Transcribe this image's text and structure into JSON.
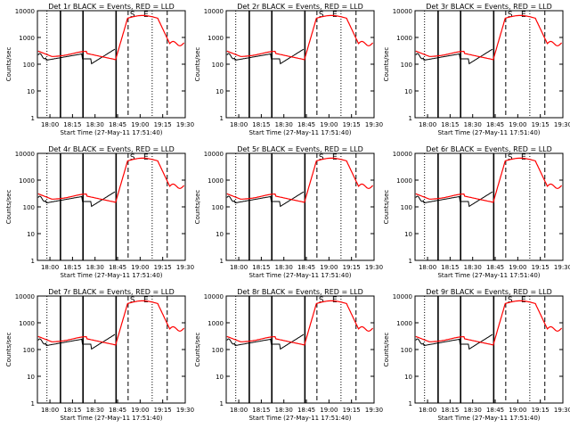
{
  "figure": {
    "xlabel": "Start Time (27-May-11 17:51:40)",
    "ylabel": "Counts/sec"
  },
  "colors": {
    "events": "#000000",
    "lld": "#ff0000",
    "axes": "#000000",
    "background": "#ffffff"
  },
  "chart_data": [
    {
      "type": "line",
      "title": "Det 1r BLACK = Events, RED = LLD",
      "xlabel": "Start Time (27-May-11 17:51:40)",
      "ylabel": "Counts/sec",
      "x_ticks": [
        "18:00",
        "18:15",
        "18:30",
        "18:45",
        "19:00",
        "19:15",
        "19:30"
      ],
      "y_ticks": [
        "1",
        "10",
        "100",
        "1000",
        "10000"
      ],
      "y_scale": "log",
      "ylim": [
        1,
        10000
      ],
      "xlim": [
        "17:51:40",
        "19:30"
      ],
      "markers": [
        "S",
        "E"
      ],
      "series": [
        {
          "name": "Events",
          "color": "#000000"
        },
        {
          "name": "LLD",
          "color": "#ff0000"
        }
      ],
      "solid_lines": [
        "18:07",
        "18:22",
        "18:44"
      ],
      "dashed_lines": [
        "18:52",
        "19:18"
      ],
      "dotted_lines": [
        "17:58",
        "19:08"
      ]
    },
    {
      "type": "line",
      "title": "Det 2r BLACK = Events, RED = LLD",
      "xlabel": "Start Time (27-May-11 17:51:40)",
      "ylabel": "Counts/sec",
      "x_ticks": [
        "18:00",
        "18:15",
        "18:30",
        "18:45",
        "19:00",
        "19:15",
        "19:30"
      ],
      "y_ticks": [
        "1",
        "10",
        "100",
        "1000",
        "10000"
      ],
      "y_scale": "log",
      "ylim": [
        1,
        10000
      ],
      "xlim": [
        "17:51:40",
        "19:30"
      ],
      "markers": [
        "S",
        "E"
      ],
      "series": [
        {
          "name": "Events",
          "color": "#000000"
        },
        {
          "name": "LLD",
          "color": "#ff0000"
        }
      ],
      "solid_lines": [
        "18:07",
        "18:22",
        "18:44"
      ],
      "dashed_lines": [
        "18:52",
        "19:18"
      ],
      "dotted_lines": [
        "17:58",
        "19:08"
      ]
    },
    {
      "type": "line",
      "title": "Det 3r BLACK = Events, RED = LLD",
      "xlabel": "Start Time (27-May-11 17:51:40)",
      "ylabel": "Counts/sec",
      "x_ticks": [
        "18:00",
        "18:15",
        "18:30",
        "18:45",
        "19:00",
        "19:15",
        "19:30"
      ],
      "y_ticks": [
        "1",
        "10",
        "100",
        "1000",
        "10000"
      ],
      "y_scale": "log",
      "ylim": [
        1,
        10000
      ],
      "xlim": [
        "17:51:40",
        "19:30"
      ],
      "markers": [
        "S",
        "E"
      ],
      "series": [
        {
          "name": "Events",
          "color": "#000000"
        },
        {
          "name": "LLD",
          "color": "#ff0000"
        }
      ],
      "solid_lines": [
        "18:07",
        "18:22",
        "18:44"
      ],
      "dashed_lines": [
        "18:52",
        "19:18"
      ],
      "dotted_lines": [
        "17:58",
        "19:08"
      ]
    },
    {
      "type": "line",
      "title": "Det 4r BLACK = Events, RED = LLD",
      "xlabel": "Start Time (27-May-11 17:51:40)",
      "ylabel": "Counts/sec",
      "x_ticks": [
        "18:00",
        "18:15",
        "18:30",
        "18:45",
        "19:00",
        "19:15",
        "19:30"
      ],
      "y_ticks": [
        "1",
        "10",
        "100",
        "1000",
        "10000"
      ],
      "y_scale": "log",
      "ylim": [
        1,
        10000
      ],
      "xlim": [
        "17:51:40",
        "19:30"
      ],
      "markers": [
        "S",
        "E"
      ],
      "series": [
        {
          "name": "Events",
          "color": "#000000"
        },
        {
          "name": "LLD",
          "color": "#ff0000"
        }
      ],
      "solid_lines": [
        "18:07",
        "18:22",
        "18:44"
      ],
      "dashed_lines": [
        "18:52",
        "19:18"
      ],
      "dotted_lines": [
        "17:58",
        "19:08"
      ]
    },
    {
      "type": "line",
      "title": "Det 5r BLACK = Events, RED = LLD",
      "xlabel": "Start Time (27-May-11 17:51:40)",
      "ylabel": "Counts/sec",
      "x_ticks": [
        "18:00",
        "18:15",
        "18:30",
        "18:45",
        "19:00",
        "19:15",
        "19:30"
      ],
      "y_ticks": [
        "1",
        "10",
        "100",
        "1000",
        "10000"
      ],
      "y_scale": "log",
      "ylim": [
        1,
        10000
      ],
      "xlim": [
        "17:51:40",
        "19:30"
      ],
      "markers": [
        "S",
        "E"
      ],
      "series": [
        {
          "name": "Events",
          "color": "#000000"
        },
        {
          "name": "LLD",
          "color": "#ff0000"
        }
      ],
      "solid_lines": [
        "18:07",
        "18:22",
        "18:44"
      ],
      "dashed_lines": [
        "18:52",
        "19:18"
      ],
      "dotted_lines": [
        "17:58",
        "19:08"
      ]
    },
    {
      "type": "line",
      "title": "Det 6r BLACK = Events, RED = LLD",
      "xlabel": "Start Time (27-May-11 17:51:40)",
      "ylabel": "Counts/sec",
      "x_ticks": [
        "18:00",
        "18:15",
        "18:30",
        "18:45",
        "19:00",
        "19:15",
        "19:30"
      ],
      "y_ticks": [
        "1",
        "10",
        "100",
        "1000",
        "10000"
      ],
      "y_scale": "log",
      "ylim": [
        1,
        10000
      ],
      "xlim": [
        "17:51:40",
        "19:30"
      ],
      "markers": [
        "S",
        "E"
      ],
      "series": [
        {
          "name": "Events",
          "color": "#000000"
        },
        {
          "name": "LLD",
          "color": "#ff0000"
        }
      ],
      "solid_lines": [
        "18:07",
        "18:22",
        "18:44"
      ],
      "dashed_lines": [
        "18:52",
        "19:18"
      ],
      "dotted_lines": [
        "17:58",
        "19:08"
      ]
    },
    {
      "type": "line",
      "title": "Det 7r BLACK = Events, RED = LLD",
      "xlabel": "Start Time (27-May-11 17:51:40)",
      "ylabel": "Counts/sec",
      "x_ticks": [
        "18:00",
        "18:15",
        "18:30",
        "18:45",
        "19:00",
        "19:15",
        "19:30"
      ],
      "y_ticks": [
        "1",
        "10",
        "100",
        "1000",
        "10000"
      ],
      "y_scale": "log",
      "ylim": [
        1,
        10000
      ],
      "xlim": [
        "17:51:40",
        "19:30"
      ],
      "markers": [
        "S",
        "E"
      ],
      "series": [
        {
          "name": "Events",
          "color": "#000000"
        },
        {
          "name": "LLD",
          "color": "#ff0000"
        }
      ],
      "solid_lines": [
        "18:07",
        "18:22",
        "18:44"
      ],
      "dashed_lines": [
        "18:52",
        "19:18"
      ],
      "dotted_lines": [
        "17:58",
        "19:08"
      ]
    },
    {
      "type": "line",
      "title": "Det 8r BLACK = Events, RED = LLD",
      "xlabel": "Start Time (27-May-11 17:51:40)",
      "ylabel": "Counts/sec",
      "x_ticks": [
        "18:00",
        "18:15",
        "18:30",
        "18:45",
        "19:00",
        "19:15",
        "19:30"
      ],
      "y_ticks": [
        "1",
        "10",
        "100",
        "1000",
        "10000"
      ],
      "y_scale": "log",
      "ylim": [
        1,
        10000
      ],
      "xlim": [
        "17:51:40",
        "19:30"
      ],
      "markers": [
        "S",
        "E"
      ],
      "series": [
        {
          "name": "Events",
          "color": "#000000"
        },
        {
          "name": "LLD",
          "color": "#ff0000"
        }
      ],
      "solid_lines": [
        "18:07",
        "18:22",
        "18:44"
      ],
      "dashed_lines": [
        "18:52",
        "19:18"
      ],
      "dotted_lines": [
        "17:58",
        "19:08"
      ]
    },
    {
      "type": "line",
      "title": "Det 9r BLACK = Events, RED = LLD",
      "xlabel": "Start Time (27-May-11 17:51:40)",
      "ylabel": "Counts/sec",
      "x_ticks": [
        "18:00",
        "18:15",
        "18:30",
        "18:45",
        "19:00",
        "19:15",
        "19:30"
      ],
      "y_ticks": [
        "1",
        "10",
        "100",
        "1000",
        "10000"
      ],
      "y_scale": "log",
      "ylim": [
        1,
        10000
      ],
      "xlim": [
        "17:51:40",
        "19:30"
      ],
      "markers": [
        "S",
        "E"
      ],
      "series": [
        {
          "name": "Events",
          "color": "#000000"
        },
        {
          "name": "LLD",
          "color": "#ff0000"
        }
      ],
      "solid_lines": [
        "18:07",
        "18:22",
        "18:44"
      ],
      "dashed_lines": [
        "18:52",
        "19:18"
      ],
      "dotted_lines": [
        "17:58",
        "19:08"
      ]
    }
  ]
}
